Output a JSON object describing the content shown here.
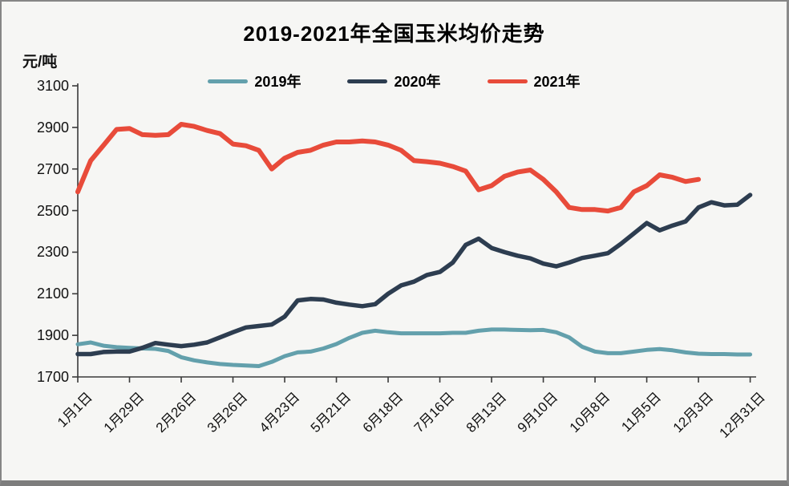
{
  "header": {
    "title": "2019-2021年全国玉米均价走势"
  },
  "y_axis": {
    "unit": "元/吨",
    "tick_labels": [
      "3100",
      "2900",
      "2700",
      "2500",
      "2300",
      "2100",
      "1900",
      "1700"
    ]
  },
  "x_axis": {
    "tick_labels": [
      "1月1日",
      "1月29日",
      "2月26日",
      "3月26日",
      "4月23日",
      "5月21日",
      "6月18日",
      "7月16日",
      "8月13日",
      "9月10日",
      "10月8日",
      "11月5日",
      "12月3日",
      "12月31日"
    ]
  },
  "legend": {
    "items": [
      {
        "label": "2019年",
        "color": "#63a0ac"
      },
      {
        "label": "2020年",
        "color": "#2d3d50"
      },
      {
        "label": "2021年",
        "color": "#e84b3a"
      }
    ]
  },
  "chart_data": {
    "type": "line",
    "title": "2019-2021年全国玉米均价走势",
    "ylabel": "元/吨",
    "ylim": [
      1700,
      3100
    ],
    "y_tick_step": 200,
    "grid": false,
    "legend_position": "top-center",
    "x_tick_labels": [
      "1月1日",
      "1月29日",
      "2月26日",
      "3月26日",
      "4月23日",
      "5月21日",
      "6月18日",
      "7月16日",
      "8月13日",
      "9月10日",
      "10月8日",
      "11月5日",
      "12月3日",
      "12月31日"
    ],
    "x_note": "weekly data points from 1月1日 to 12月31日 (53 weeks); 2021 series ends at 12月3日",
    "series": [
      {
        "name": "2019年",
        "color": "#63a0ac",
        "values": [
          1857,
          1866,
          1850,
          1843,
          1840,
          1837,
          1835,
          1825,
          1795,
          1780,
          1770,
          1762,
          1758,
          1755,
          1752,
          1772,
          1800,
          1818,
          1822,
          1837,
          1858,
          1888,
          1912,
          1922,
          1915,
          1910,
          1910,
          1910,
          1910,
          1912,
          1912,
          1922,
          1928,
          1928,
          1926,
          1925,
          1926,
          1915,
          1890,
          1845,
          1822,
          1814,
          1814,
          1822,
          1830,
          1834,
          1828,
          1818,
          1812,
          1810,
          1810,
          1808,
          1808
        ]
      },
      {
        "name": "2020年",
        "color": "#2d3d50",
        "values": [
          1810,
          1810,
          1820,
          1822,
          1822,
          1840,
          1863,
          1855,
          1848,
          1855,
          1866,
          1890,
          1915,
          1938,
          1945,
          1952,
          1990,
          2068,
          2075,
          2072,
          2057,
          2048,
          2040,
          2050,
          2100,
          2140,
          2158,
          2190,
          2205,
          2250,
          2335,
          2365,
          2320,
          2300,
          2283,
          2270,
          2245,
          2232,
          2250,
          2272,
          2283,
          2295,
          2340,
          2390,
          2440,
          2405,
          2428,
          2448,
          2515,
          2540,
          2525,
          2528,
          2575
        ]
      },
      {
        "name": "2021年",
        "color": "#e84b3a",
        "values": [
          2590,
          2740,
          2815,
          2890,
          2895,
          2865,
          2862,
          2865,
          2915,
          2905,
          2885,
          2870,
          2820,
          2812,
          2790,
          2700,
          2752,
          2780,
          2790,
          2815,
          2830,
          2830,
          2835,
          2830,
          2815,
          2790,
          2740,
          2735,
          2728,
          2712,
          2690,
          2600,
          2620,
          2665,
          2685,
          2695,
          2650,
          2590,
          2515,
          2505,
          2505,
          2498,
          2515,
          2590,
          2620,
          2672,
          2660,
          2640,
          2650
        ]
      }
    ]
  }
}
